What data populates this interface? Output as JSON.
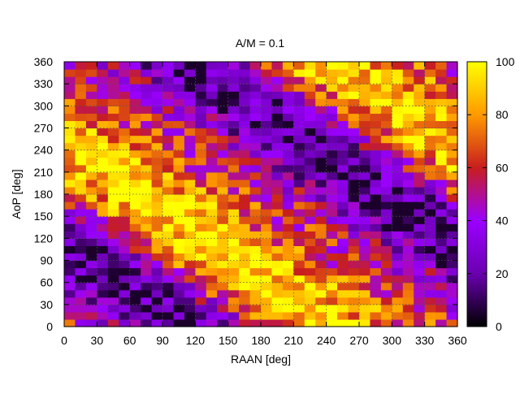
{
  "chart_data": {
    "type": "heatmap",
    "title": "A/M = 0.1",
    "xlabel": "RAAN [deg]",
    "ylabel": "AoP [deg]",
    "xlim": [
      0,
      360
    ],
    "ylim": [
      0,
      360
    ],
    "x_ticks": [
      0,
      30,
      60,
      90,
      120,
      150,
      180,
      210,
      240,
      270,
      300,
      330,
      360
    ],
    "y_ticks": [
      0,
      30,
      60,
      90,
      120,
      150,
      180,
      210,
      240,
      270,
      300,
      330,
      360
    ],
    "grid": true,
    "colorbar": {
      "range": [
        0,
        100
      ],
      "ticks": [
        0,
        20,
        40,
        60,
        80,
        100
      ],
      "colormap": [
        "#000000",
        "#6a00b0",
        "#9b00ff",
        "#c81e1e",
        "#ff9a00",
        "#ffff00"
      ]
    },
    "grid_step_deg": 10,
    "pattern_note_values": {
      "description": "Values 0-100 on a 36x36 grid (10 deg steps) over RAAN x AoP",
      "x_centers": [
        5,
        15,
        25,
        35,
        45,
        55,
        65,
        75,
        85,
        95,
        105,
        115,
        125,
        135,
        145,
        155,
        165,
        175,
        185,
        195,
        205,
        215,
        225,
        235,
        245,
        255,
        265,
        275,
        285,
        295,
        305,
        315,
        325,
        335,
        345,
        355
      ],
      "y_centers": [
        5,
        15,
        25,
        35,
        45,
        55,
        65,
        75,
        85,
        95,
        105,
        115,
        125,
        135,
        145,
        155,
        165,
        175,
        185,
        195,
        205,
        215,
        225,
        235,
        245,
        255,
        265,
        275,
        285,
        295,
        305,
        315,
        325,
        335,
        345,
        355
      ]
    }
  }
}
